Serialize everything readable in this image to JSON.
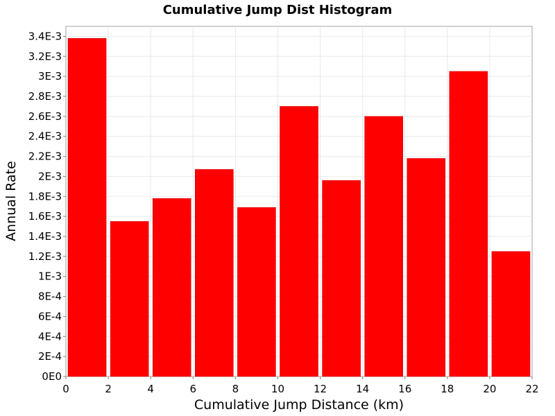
{
  "chart_data": {
    "type": "bar",
    "title": "Cumulative Jump Dist Histogram",
    "xlabel": "Cumulative Jump Distance (km)",
    "ylabel": "Annual Rate",
    "xlim": [
      0,
      22
    ],
    "ylim": [
      0,
      0.0035
    ],
    "x_ticks": [
      "0",
      "2",
      "4",
      "6",
      "8",
      "10",
      "12",
      "14",
      "16",
      "18",
      "20",
      "22"
    ],
    "y_ticks": [
      "0E0",
      "2E-4",
      "4E-4",
      "6E-4",
      "8E-4",
      "1E-3",
      "1.2E-3",
      "1.4E-3",
      "1.6E-3",
      "1.8E-3",
      "2E-3",
      "2.2E-3",
      "2.4E-3",
      "2.6E-3",
      "2.8E-3",
      "3E-3",
      "3.2E-3",
      "3.4E-3"
    ],
    "bin_width": 2,
    "bins": [
      {
        "x": 1,
        "value": 0.00338
      },
      {
        "x": 3,
        "value": 0.00155
      },
      {
        "x": 5,
        "value": 0.00178
      },
      {
        "x": 7,
        "value": 0.00207
      },
      {
        "x": 9,
        "value": 0.00169
      },
      {
        "x": 11,
        "value": 0.0027
      },
      {
        "x": 13,
        "value": 0.00196
      },
      {
        "x": 15,
        "value": 0.0026
      },
      {
        "x": 17,
        "value": 0.00218
      },
      {
        "x": 19,
        "value": 0.00305
      },
      {
        "x": 21,
        "value": 0.00125
      }
    ],
    "bar_color": "#ff0000",
    "grid": true,
    "legend": "none"
  }
}
